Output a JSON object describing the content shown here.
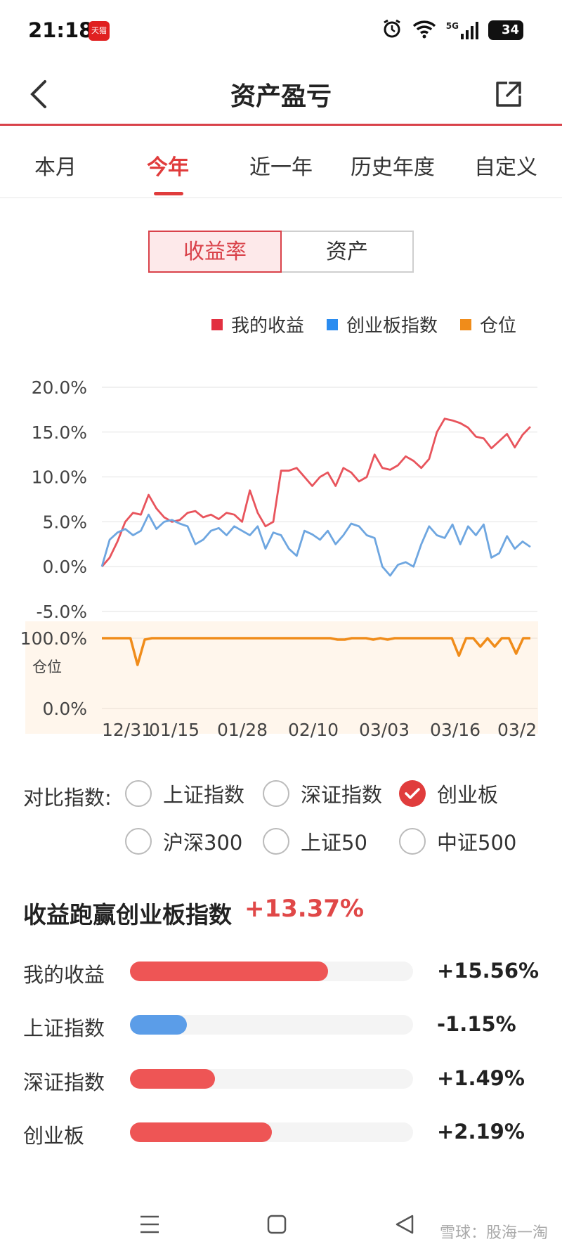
{
  "status_bar": {
    "time": "21:18",
    "app_badge": "天猫",
    "signal": "5G",
    "battery": "34"
  },
  "header": {
    "title": "资产盈亏"
  },
  "tabs": [
    {
      "label": "本月",
      "active": false
    },
    {
      "label": "今年",
      "active": true
    },
    {
      "label": "近一年",
      "active": false
    },
    {
      "label": "历史年度",
      "active": false
    },
    {
      "label": "自定义",
      "active": false
    }
  ],
  "segment": {
    "left": "收益率",
    "right": "资产",
    "selected": "收益率"
  },
  "colors": {
    "accent": "#e03c3c",
    "my": "#e8545c",
    "index": "#6ea6e0",
    "position": "#f08c1a"
  },
  "chart_data": {
    "type": "line",
    "legend": [
      {
        "name": "我的收益",
        "color": "#e23040"
      },
      {
        "name": "创业板指数",
        "color": "#2a8cf0"
      },
      {
        "name": "仓位",
        "color": "#f08c1a"
      }
    ],
    "y_ticks": [
      "20.0%",
      "15.0%",
      "10.0%",
      "5.0%",
      "0.0%",
      "-5.0%"
    ],
    "ylim": [
      -5,
      20
    ],
    "x_ticks": [
      "12/31",
      "01/15",
      "01/28",
      "02/10",
      "03/03",
      "03/16",
      "03/2"
    ],
    "series": [
      {
        "name": "我的收益",
        "values": [
          0,
          1,
          2.8,
          5,
          6,
          5.8,
          8,
          6.5,
          5.5,
          5,
          5.2,
          6,
          6.2,
          5.5,
          5.8,
          5.3,
          6,
          5.8,
          5,
          8.5,
          6,
          4.5,
          5,
          10.7,
          10.7,
          11,
          10,
          9,
          10,
          10.5,
          9,
          11,
          10.5,
          9.5,
          10,
          12.5,
          11,
          10.8,
          11.3,
          12.3,
          11.8,
          11,
          12,
          15,
          16.5,
          16.3,
          16,
          15.5,
          14.5,
          14.3,
          13.2,
          14,
          14.8,
          13.3,
          14.7,
          15.6
        ]
      },
      {
        "name": "创业板指数",
        "values": [
          0,
          3,
          3.8,
          4.2,
          3.5,
          4,
          5.8,
          4.2,
          5,
          5.2,
          4.8,
          4.5,
          2.5,
          3,
          4,
          4.3,
          3.5,
          4.5,
          4,
          3.5,
          4.5,
          2,
          3.8,
          3.5,
          2,
          1.2,
          4,
          3.6,
          3,
          4,
          2.5,
          3.5,
          4.8,
          4.5,
          3.5,
          3.2,
          0,
          -1,
          0.2,
          0.5,
          0,
          2.5,
          4.5,
          3.5,
          3.2,
          4.7,
          2.5,
          4.5,
          3.5,
          4.7,
          1,
          1.5,
          3.4,
          2,
          2.8,
          2.2
        ]
      },
      {
        "name": "仓位",
        "values": [
          100,
          100,
          100,
          100,
          100,
          62,
          98,
          100,
          100,
          100,
          100,
          100,
          100,
          100,
          100,
          100,
          100,
          100,
          100,
          100,
          100,
          100,
          100,
          100,
          100,
          100,
          100,
          100,
          100,
          100,
          100,
          100,
          100,
          98,
          98,
          100,
          100,
          100,
          98,
          100,
          98,
          100,
          100,
          100,
          100,
          100,
          100,
          100,
          100,
          100,
          75,
          100,
          100,
          88,
          100,
          88,
          100,
          100,
          78,
          100,
          100
        ]
      }
    ],
    "position_ticks": [
      "100.0%",
      "0.0%"
    ],
    "position_label": "仓位"
  },
  "compare": {
    "label": "对比指数:",
    "options": [
      {
        "label": "上证指数",
        "checked": false
      },
      {
        "label": "深证指数",
        "checked": false
      },
      {
        "label": "创业板",
        "checked": true
      },
      {
        "label": "沪深300",
        "checked": false
      },
      {
        "label": "上证50",
        "checked": false
      },
      {
        "label": "中证500",
        "checked": false
      }
    ]
  },
  "summary": {
    "title": "收益跑赢创业板指数",
    "value": "+13.37%",
    "rows": [
      {
        "label": "我的收益",
        "value": "+15.56%",
        "fill": 0.7,
        "color": "#ee5555"
      },
      {
        "label": "上证指数",
        "value": "-1.15%",
        "fill": 0.2,
        "color": "#5b9de8"
      },
      {
        "label": "深证指数",
        "value": "+1.49%",
        "fill": 0.3,
        "color": "#ee5555"
      },
      {
        "label": "创业板",
        "value": "+2.19%",
        "fill": 0.5,
        "color": "#ee5555"
      }
    ]
  },
  "watermark": "雪球：股海一淘"
}
